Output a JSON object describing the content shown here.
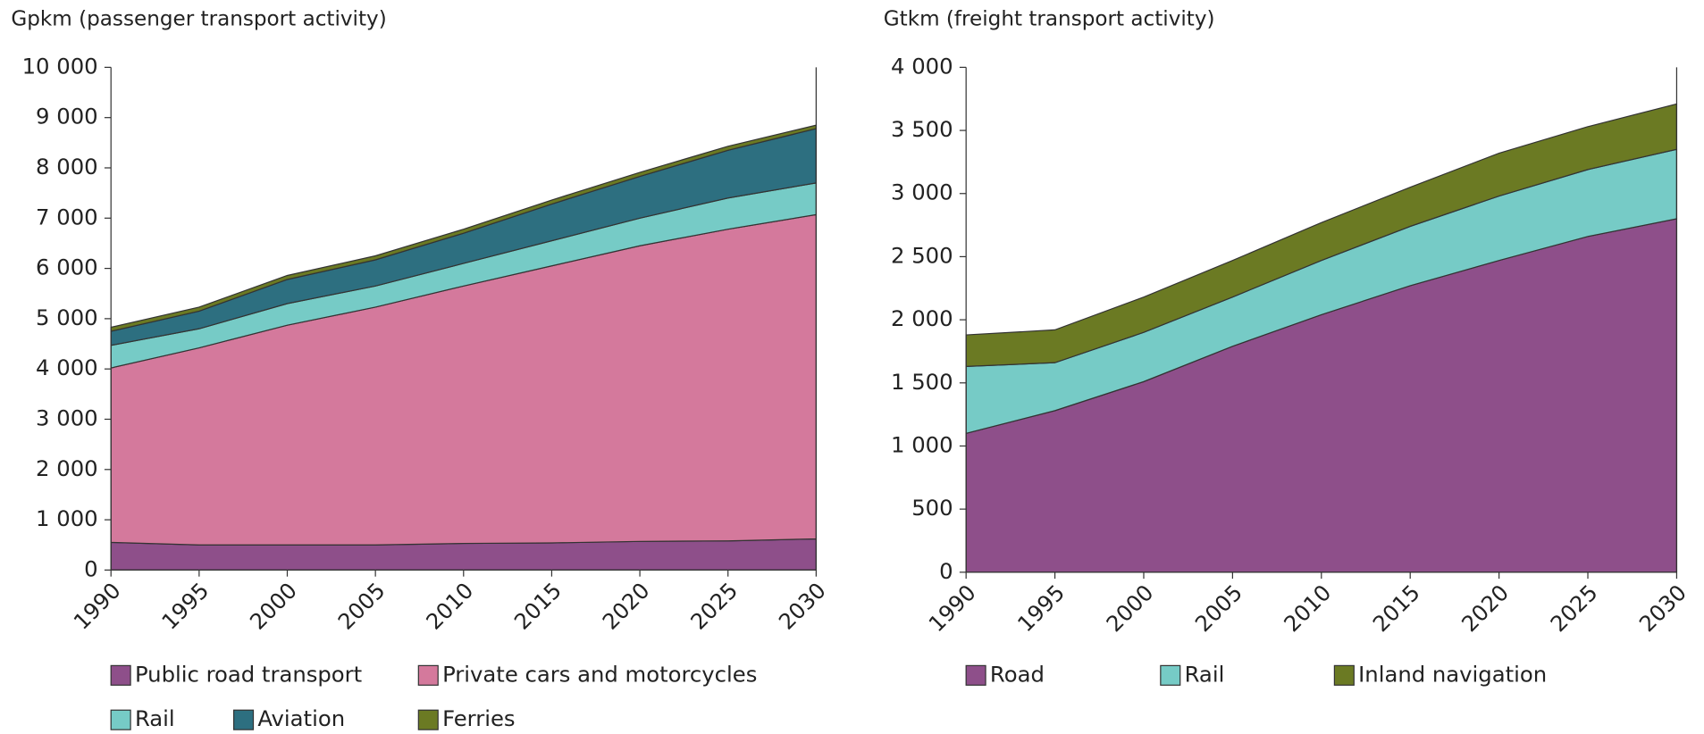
{
  "chart_data": [
    {
      "type": "area",
      "title": "Gpkm (passenger transport activity)",
      "x": [
        1990,
        1995,
        2000,
        2005,
        2010,
        2015,
        2020,
        2025,
        2030
      ],
      "xlim": [
        1990,
        2030
      ],
      "xticks": [
        1990,
        1995,
        2000,
        2005,
        2010,
        2015,
        2020,
        2025,
        2030
      ],
      "ylim": [
        0,
        10000
      ],
      "yticks": [
        0,
        {
          "value": 1000,
          "label": "1 000"
        },
        {
          "value": 2000,
          "label": "2 000"
        },
        {
          "value": 3000,
          "label": "3 000"
        },
        {
          "value": 4000,
          "label": "4 000"
        },
        {
          "value": 5000,
          "label": "5 000"
        },
        {
          "value": 6000,
          "label": "6 000"
        },
        {
          "value": 7000,
          "label": "7 000"
        },
        {
          "value": 8000,
          "label": "8 000"
        },
        {
          "value": 9000,
          "label": "9 000"
        },
        {
          "value": 10000,
          "label": "10 000"
        }
      ],
      "stacked": true,
      "series": [
        {
          "name": "Public road transport",
          "color": "#8e4f8a",
          "values": [
            550,
            500,
            500,
            500,
            530,
            540,
            570,
            580,
            620
          ]
        },
        {
          "name": "Private cars and motorcycles",
          "color": "#d4799c",
          "values": [
            3470,
            3920,
            4370,
            4730,
            5120,
            5510,
            5880,
            6200,
            6450
          ]
        },
        {
          "name": "Rail",
          "color": "#76cbc6",
          "values": [
            450,
            380,
            430,
            420,
            450,
            500,
            550,
            620,
            630
          ]
        },
        {
          "name": "Aviation",
          "color": "#2d6f80",
          "values": [
            280,
            350,
            480,
            520,
            600,
            730,
            830,
            950,
            1080
          ]
        },
        {
          "name": "Ferries",
          "color": "#6b7a23",
          "values": [
            80,
            80,
            80,
            80,
            80,
            80,
            80,
            80,
            70
          ]
        }
      ]
    },
    {
      "type": "area",
      "title": "Gtkm (freight transport activity)",
      "x": [
        1990,
        1995,
        2000,
        2005,
        2010,
        2015,
        2020,
        2025,
        2030
      ],
      "xlim": [
        1990,
        2030
      ],
      "xticks": [
        1990,
        1995,
        2000,
        2005,
        2010,
        2015,
        2020,
        2025,
        2030
      ],
      "ylim": [
        0,
        4000
      ],
      "yticks": [
        0,
        500,
        {
          "value": 1000,
          "label": "1 000"
        },
        {
          "value": 1500,
          "label": "1 500"
        },
        {
          "value": 2000,
          "label": "2 000"
        },
        {
          "value": 2500,
          "label": "2 500"
        },
        {
          "value": 3000,
          "label": "3 000"
        },
        {
          "value": 3500,
          "label": "3 500"
        },
        {
          "value": 4000,
          "label": "4 000"
        }
      ],
      "stacked": true,
      "series": [
        {
          "name": "Road",
          "color": "#8e4f8a",
          "values": [
            1100,
            1280,
            1510,
            1790,
            2040,
            2270,
            2470,
            2660,
            2800
          ]
        },
        {
          "name": "Rail",
          "color": "#76cbc6",
          "values": [
            530,
            380,
            390,
            390,
            430,
            470,
            510,
            530,
            550
          ]
        },
        {
          "name": "Inland navigation",
          "color": "#6b7a23",
          "values": [
            250,
            260,
            280,
            290,
            300,
            310,
            340,
            340,
            360
          ]
        }
      ]
    }
  ]
}
